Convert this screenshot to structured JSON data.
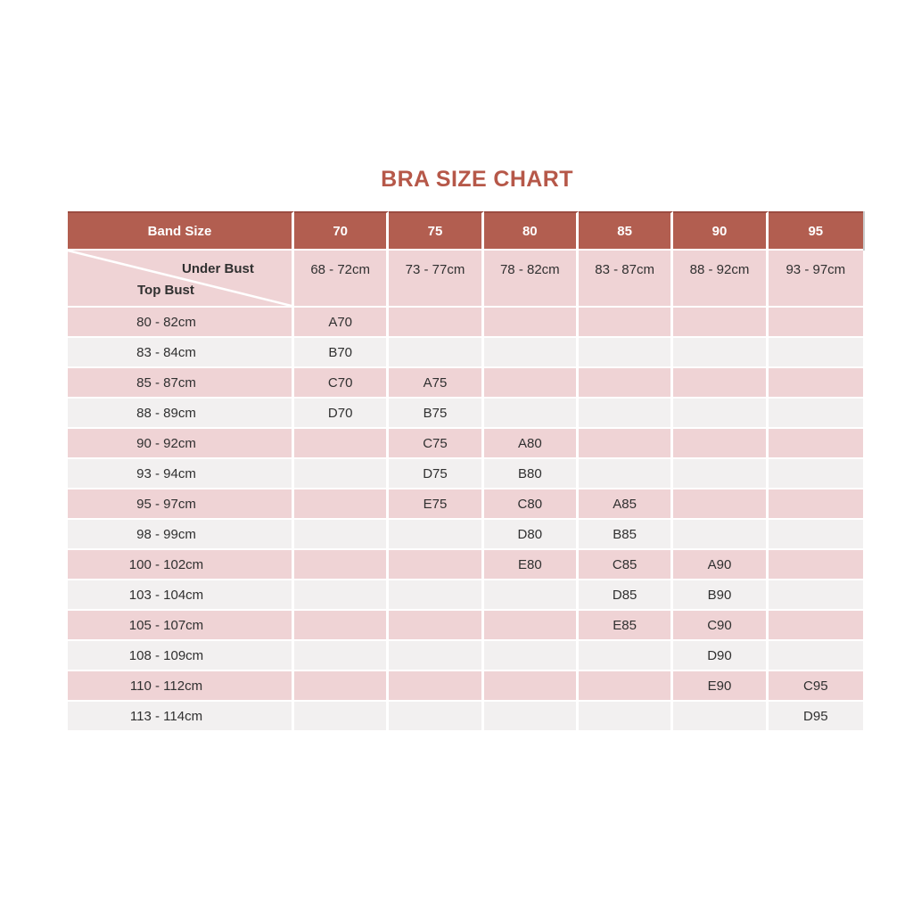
{
  "title": "BRA SIZE CHART",
  "colors": {
    "header_bg": "#b25e50",
    "header_border_top": "#9b4b40",
    "header_text": "#ffffff",
    "title_color": "#b65849",
    "row_pink": "#efd3d5",
    "row_gray": "#f2f0f0",
    "text_dark": "#303030",
    "separator": "#ffffff",
    "header_right_line": "#c9c9c9"
  },
  "chart_data": {
    "type": "table",
    "title": "BRA SIZE CHART",
    "band_size_label": "Band Size",
    "under_bust_label": "Under Bust",
    "top_bust_label": "Top Bust",
    "band_sizes": [
      "70",
      "75",
      "80",
      "85",
      "90",
      "95"
    ],
    "under_bust_ranges": [
      "68 - 72cm",
      "73 - 77cm",
      "78 - 82cm",
      "83 - 87cm",
      "88 - 92cm",
      "93 - 97cm"
    ],
    "rows": [
      {
        "top_bust": "80 - 82cm",
        "cells": [
          "A70",
          "",
          "",
          "",
          "",
          ""
        ]
      },
      {
        "top_bust": "83 - 84cm",
        "cells": [
          "B70",
          "",
          "",
          "",
          "",
          ""
        ]
      },
      {
        "top_bust": "85 - 87cm",
        "cells": [
          "C70",
          "A75",
          "",
          "",
          "",
          ""
        ]
      },
      {
        "top_bust": "88 - 89cm",
        "cells": [
          "D70",
          "B75",
          "",
          "",
          "",
          ""
        ]
      },
      {
        "top_bust": "90 - 92cm",
        "cells": [
          "",
          "C75",
          "A80",
          "",
          "",
          ""
        ]
      },
      {
        "top_bust": "93 - 94cm",
        "cells": [
          "",
          "D75",
          "B80",
          "",
          "",
          ""
        ]
      },
      {
        "top_bust": "95 - 97cm",
        "cells": [
          "",
          "E75",
          "C80",
          "A85",
          "",
          ""
        ]
      },
      {
        "top_bust": "98 - 99cm",
        "cells": [
          "",
          "",
          "D80",
          "B85",
          "",
          ""
        ]
      },
      {
        "top_bust": "100 - 102cm",
        "cells": [
          "",
          "",
          "E80",
          "C85",
          "A90",
          ""
        ]
      },
      {
        "top_bust": "103 - 104cm",
        "cells": [
          "",
          "",
          "",
          "D85",
          "B90",
          ""
        ]
      },
      {
        "top_bust": "105 - 107cm",
        "cells": [
          "",
          "",
          "",
          "E85",
          "C90",
          ""
        ]
      },
      {
        "top_bust": "108 - 109cm",
        "cells": [
          "",
          "",
          "",
          "",
          "D90",
          ""
        ]
      },
      {
        "top_bust": "110 - 112cm",
        "cells": [
          "",
          "",
          "",
          "",
          "E90",
          "C95"
        ]
      },
      {
        "top_bust": "113 - 114cm",
        "cells": [
          "",
          "",
          "",
          "",
          "",
          "D95"
        ]
      }
    ]
  }
}
